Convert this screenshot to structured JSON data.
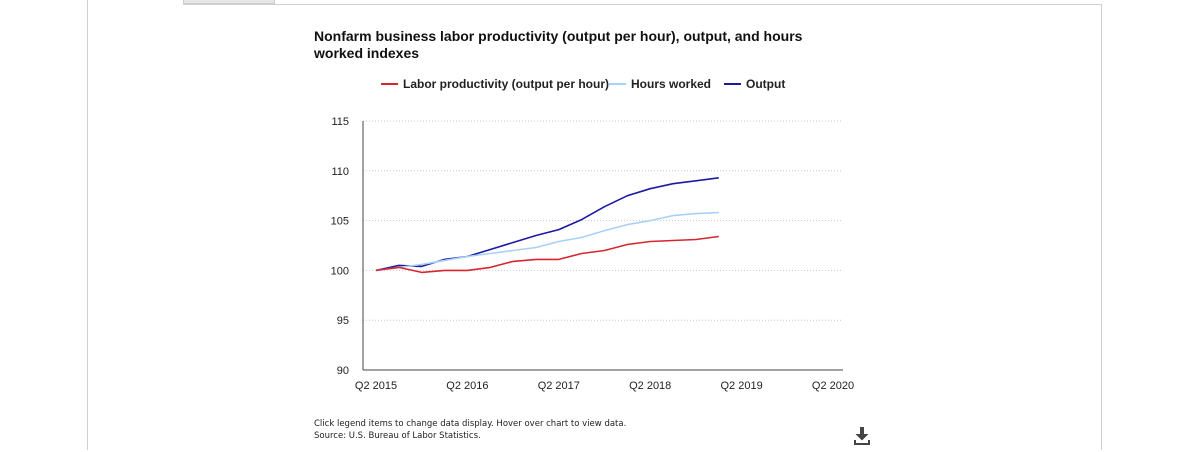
{
  "footer": {
    "instructions": "Click legend items to change data display. Hover over chart to view data.",
    "source": "Source: U.S. Bureau of Labor Statistics."
  },
  "icons": {
    "download": "download-icon"
  },
  "chart_data": {
    "type": "line",
    "title": "Nonfarm business labor productivity (output per hour), output, and hours worked indexes",
    "xlabel": "",
    "ylabel": "",
    "xlim": [
      "Q2 2015",
      "Q2 2020"
    ],
    "ylim": [
      90,
      115
    ],
    "grid": true,
    "legend": "top",
    "x_ticks": [
      "Q2 2015",
      "Q2 2016",
      "Q2 2017",
      "Q2 2018",
      "Q2 2019",
      "Q2 2020"
    ],
    "y_ticks": [
      90,
      95,
      100,
      105,
      110,
      115
    ],
    "x": [
      "Q2 2015",
      "Q3 2015",
      "Q4 2015",
      "Q1 2016",
      "Q2 2016",
      "Q3 2016",
      "Q4 2016",
      "Q1 2017",
      "Q2 2017",
      "Q3 2017",
      "Q4 2017",
      "Q1 2018",
      "Q2 2018",
      "Q3 2018",
      "Q4 2018",
      "Q1 2019"
    ],
    "series": [
      {
        "name": "Labor productivity (output per hour)",
        "color": "#d7262f",
        "values": [
          100.0,
          100.3,
          99.8,
          100.0,
          100.0,
          100.3,
          100.9,
          101.1,
          101.1,
          101.7,
          102.0,
          102.6,
          102.9,
          103.0,
          103.1,
          103.4
        ]
      },
      {
        "name": "Hours worked",
        "color": "#a9d1f7",
        "values": [
          100.0,
          100.3,
          100.6,
          101.0,
          101.4,
          101.7,
          102.0,
          102.3,
          102.9,
          103.3,
          104.0,
          104.6,
          105.0,
          105.5,
          105.7,
          105.8
        ]
      },
      {
        "name": "Output",
        "color": "#1c1aa3",
        "values": [
          100.0,
          100.5,
          100.4,
          101.1,
          101.4,
          102.1,
          102.8,
          103.5,
          104.1,
          105.1,
          106.4,
          107.5,
          108.2,
          108.7,
          109.0,
          109.3
        ]
      }
    ]
  }
}
